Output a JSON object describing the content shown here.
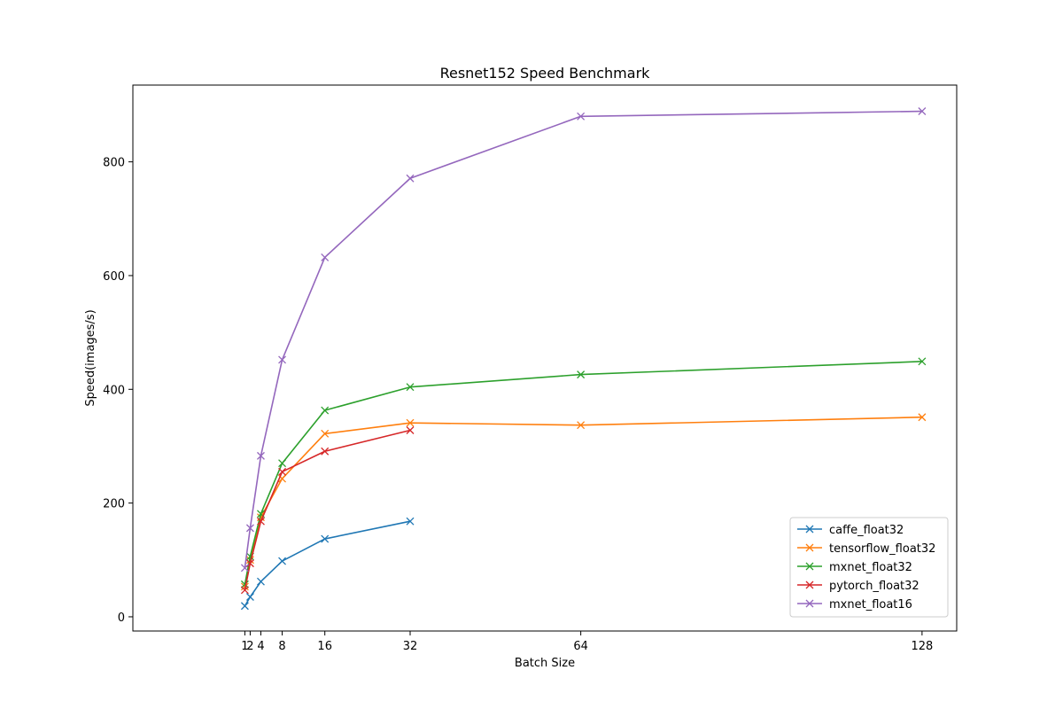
{
  "chart_data": {
    "type": "line",
    "title": "Resnet152 Speed Benchmark",
    "xlabel": "Batch Size",
    "ylabel": "Speed(images/s)",
    "xticks": [
      1,
      2,
      4,
      8,
      16,
      32,
      64,
      128
    ],
    "xtick_labels": [
      "1",
      "2",
      "4",
      "8",
      "16",
      "32",
      "64",
      "128"
    ],
    "yticks": [
      0,
      200,
      400,
      600,
      800
    ],
    "ytick_labels": [
      "0",
      "200",
      "400",
      "600",
      "800"
    ],
    "xlim": [
      -20,
      134.5
    ],
    "ylim": [
      -25,
      935
    ],
    "grid": false,
    "legend_position": "lower-right",
    "marker": "x",
    "series": [
      {
        "name": "caffe_float32",
        "color": "#1f77b4",
        "x": [
          1,
          2,
          4,
          8,
          16,
          32
        ],
        "y": [
          19,
          35,
          62,
          98,
          137,
          168
        ]
      },
      {
        "name": "tensorflow_float32",
        "color": "#ff7f0e",
        "x": [
          1,
          2,
          4,
          8,
          16,
          32,
          64,
          128
        ],
        "y": [
          53,
          100,
          175,
          243,
          322,
          341,
          337,
          351
        ]
      },
      {
        "name": "mxnet_float32",
        "color": "#2ca02c",
        "x": [
          1,
          2,
          4,
          8,
          16,
          32,
          64,
          128
        ],
        "y": [
          57,
          106,
          181,
          270,
          363,
          404,
          426,
          449
        ]
      },
      {
        "name": "pytorch_float32",
        "color": "#d62728",
        "x": [
          1,
          2,
          4,
          8,
          16,
          32
        ],
        "y": [
          47,
          94,
          168,
          255,
          291,
          328
        ]
      },
      {
        "name": "mxnet_float16",
        "color": "#9467bd",
        "x": [
          1,
          2,
          4,
          8,
          16,
          32,
          64,
          128
        ],
        "y": [
          86,
          156,
          283,
          452,
          632,
          771,
          880,
          889
        ]
      }
    ]
  }
}
